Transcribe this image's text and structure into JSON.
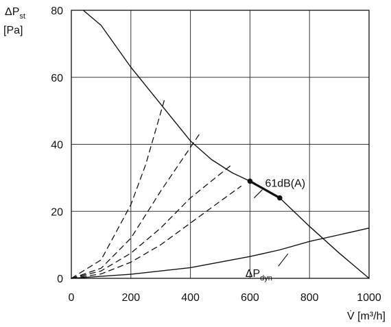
{
  "chart_data": {
    "type": "line",
    "ylabel_top": "ΔP",
    "ylabel_sub": "st",
    "ylabel_unit": "[Pa]",
    "xlabel": "V̇ [m³/h]",
    "xlim": [
      0,
      1000
    ],
    "ylim": [
      0,
      80
    ],
    "x_ticks": [
      0,
      200,
      400,
      600,
      800,
      1000
    ],
    "y_ticks": [
      0,
      20,
      40,
      60,
      80
    ],
    "x_tick_labels": [
      "0",
      "200",
      "400",
      "600",
      "800",
      "1000"
    ],
    "y_tick_labels": [
      "0",
      "20",
      "40",
      "60",
      "80"
    ],
    "grid": true,
    "series": [
      {
        "style": "solid",
        "points": [
          [
            40,
            80
          ],
          [
            100,
            75.5
          ],
          [
            200,
            63
          ],
          [
            300,
            52
          ],
          [
            400,
            41
          ],
          [
            470,
            35.5
          ],
          [
            540,
            31.5
          ],
          [
            600,
            29
          ],
          [
            700,
            24
          ],
          [
            800,
            15.5
          ],
          [
            900,
            7.5
          ],
          [
            1000,
            0
          ]
        ]
      },
      {
        "style": "bold",
        "points": [
          [
            600,
            29
          ],
          [
            700,
            24
          ]
        ],
        "markers": [
          [
            600,
            29
          ],
          [
            700,
            24
          ]
        ]
      },
      {
        "style": "solid",
        "points": [
          [
            0,
            0
          ],
          [
            200,
            1.2
          ],
          [
            400,
            3.2
          ],
          [
            600,
            6.5
          ],
          [
            700,
            8.5
          ],
          [
            800,
            11
          ],
          [
            900,
            13
          ],
          [
            1000,
            15
          ]
        ]
      },
      {
        "style": "dashed",
        "points": [
          [
            0,
            0
          ],
          [
            100,
            5.5
          ],
          [
            200,
            22
          ],
          [
            250,
            34
          ],
          [
            315,
            54
          ]
        ]
      },
      {
        "style": "dashed",
        "points": [
          [
            0,
            0
          ],
          [
            100,
            3
          ],
          [
            200,
            12
          ],
          [
            300,
            26
          ],
          [
            430,
            43
          ]
        ]
      },
      {
        "style": "dashed",
        "points": [
          [
            0,
            0
          ],
          [
            100,
            2.2
          ],
          [
            200,
            7.5
          ],
          [
            300,
            15
          ],
          [
            400,
            24
          ],
          [
            540,
            34
          ]
        ]
      },
      {
        "style": "dashed",
        "points": [
          [
            0,
            0
          ],
          [
            100,
            1.3
          ],
          [
            200,
            4.8
          ],
          [
            300,
            10
          ],
          [
            400,
            16.5
          ],
          [
            500,
            23
          ],
          [
            570,
            27.5
          ]
        ]
      }
    ],
    "annotations": [
      {
        "text": "61dB(A)",
        "x": 660,
        "y": 28.5
      },
      {
        "text": "ΔP",
        "sub": "dyn",
        "x": 640,
        "y": 6.5
      }
    ]
  }
}
